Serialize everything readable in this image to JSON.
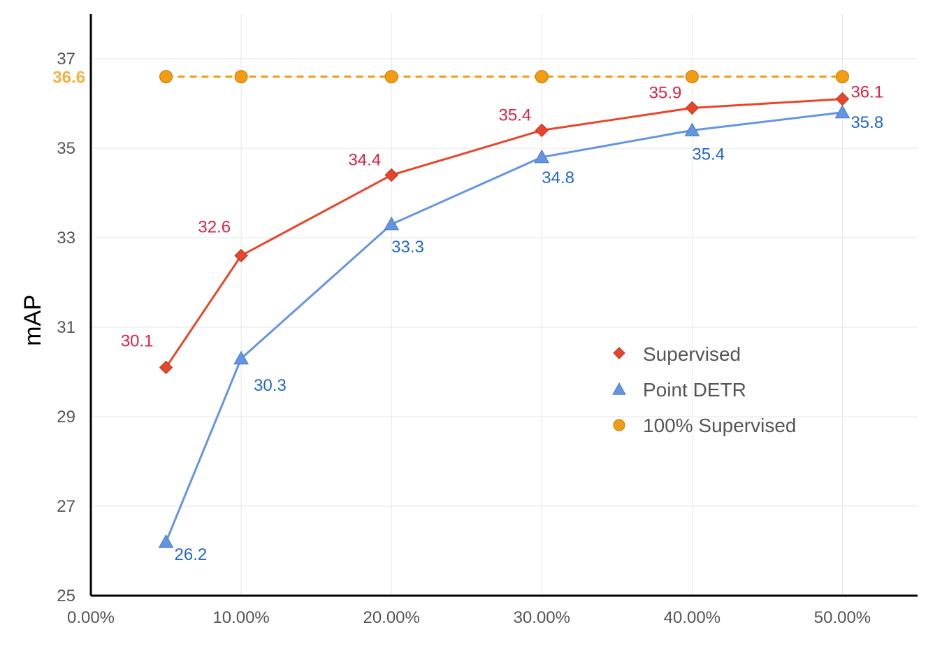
{
  "chart_data": {
    "type": "line",
    "title": "",
    "xlabel": "",
    "ylabel": "mAP",
    "x_format": "percent",
    "xlim": [
      0,
      55
    ],
    "ylim": [
      25,
      38
    ],
    "x_ticks": [
      {
        "value": 0,
        "label": "0.00%"
      },
      {
        "value": 10,
        "label": "10.00%"
      },
      {
        "value": 20,
        "label": "20.00%"
      },
      {
        "value": 30,
        "label": "30.00%"
      },
      {
        "value": 40,
        "label": "40.00%"
      },
      {
        "value": 50,
        "label": "50.00%"
      }
    ],
    "y_ticks": [
      {
        "value": 25,
        "label": "25"
      },
      {
        "value": 27,
        "label": "27"
      },
      {
        "value": 29,
        "label": "29"
      },
      {
        "value": 31,
        "label": "31"
      },
      {
        "value": 33,
        "label": "33"
      },
      {
        "value": 35,
        "label": "35"
      },
      {
        "value": 37,
        "label": "37"
      }
    ],
    "grid": true,
    "legend_position": "center-right",
    "x": [
      5,
      10,
      20,
      30,
      40,
      50
    ],
    "series": [
      {
        "name": "Supervised",
        "marker": "diamond",
        "color": "#e8462a",
        "label_color": "#dd2244",
        "values": [
          30.1,
          32.6,
          34.4,
          35.4,
          35.9,
          36.1
        ],
        "labels": [
          "30.1",
          "32.6",
          "34.4",
          "35.4",
          "35.9",
          "36.1"
        ]
      },
      {
        "name": "Point DETR",
        "marker": "triangle",
        "color": "#6495e3",
        "label_color": "#2266cc",
        "values": [
          26.2,
          30.3,
          33.3,
          34.8,
          35.4,
          35.8
        ],
        "labels": [
          "26.2",
          "30.3",
          "33.3",
          "34.8",
          "35.4",
          "35.8"
        ]
      },
      {
        "name": "100% Supervised",
        "marker": "circle",
        "color": "#f39c12",
        "line_style": "dashed",
        "values": [
          36.6,
          36.6,
          36.6,
          36.6,
          36.6,
          36.6
        ]
      }
    ],
    "annotations": [
      {
        "text": "36.6",
        "y": 36.6,
        "position": "y-axis-left",
        "color": "#f5b042"
      }
    ]
  }
}
